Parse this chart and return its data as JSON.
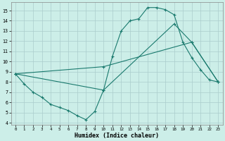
{
  "xlabel": "Humidex (Indice chaleur)",
  "background_color": "#cceee8",
  "grid_color": "#aacccc",
  "line_color": "#1a7a6e",
  "xlim": [
    -0.5,
    23.5
  ],
  "ylim": [
    3.8,
    15.8
  ],
  "yticks": [
    4,
    5,
    6,
    7,
    8,
    9,
    10,
    11,
    12,
    13,
    14,
    15
  ],
  "xticks": [
    0,
    1,
    2,
    3,
    4,
    5,
    6,
    7,
    8,
    9,
    10,
    11,
    12,
    13,
    14,
    15,
    16,
    17,
    18,
    19,
    20,
    21,
    22,
    23
  ],
  "line1_x": [
    0,
    1,
    2,
    3,
    4,
    5,
    6,
    7,
    8,
    9,
    10,
    11,
    12,
    13,
    14,
    15,
    16,
    17,
    18,
    19,
    20,
    21,
    22,
    23
  ],
  "line1_y": [
    8.8,
    7.8,
    7.0,
    6.5,
    5.8,
    5.5,
    5.2,
    4.7,
    4.3,
    5.1,
    7.2,
    10.5,
    13.0,
    14.0,
    14.2,
    15.3,
    15.3,
    15.1,
    14.6,
    11.9,
    10.4,
    9.2,
    8.2,
    8.0
  ],
  "line2_x": [
    0,
    10,
    20,
    23
  ],
  "line2_y": [
    8.8,
    9.5,
    11.9,
    8.0
  ],
  "line3_x": [
    0,
    10,
    18,
    20,
    23
  ],
  "line3_y": [
    8.8,
    7.2,
    13.7,
    11.9,
    8.0
  ]
}
